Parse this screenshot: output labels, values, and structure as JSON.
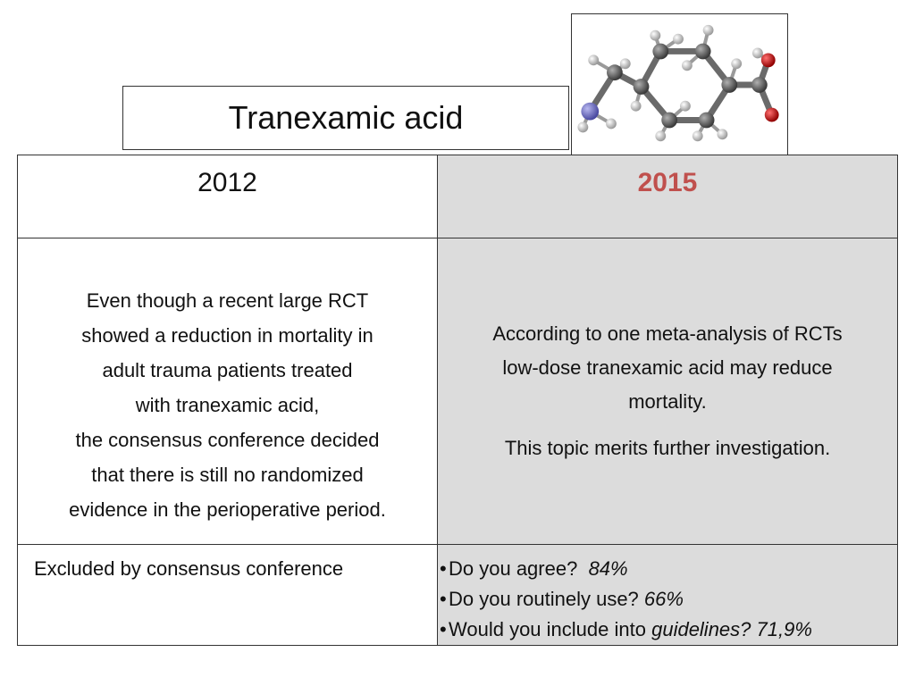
{
  "title": "Tranexamic acid",
  "molecule": {
    "icon": "tranexamic-acid-molecule",
    "colors": {
      "carbon": "#555555",
      "hydrogen": "#e0e0e0",
      "nitrogen": "#7070c8",
      "oxygen": "#cc1111"
    }
  },
  "table": {
    "col_2012": {
      "year": "2012",
      "text_lines": [
        "Even though a recent large RCT",
        "showed a reduction in mortality in",
        "adult trauma patients treated",
        "with tranexamic acid,",
        "the consensus conference decided",
        "that there is still no randomized",
        "evidence in the perioperative period."
      ],
      "status": "Excluded by consensus conference"
    },
    "col_2015": {
      "year": "2015",
      "year_color": "#c0504d",
      "text_lines": [
        "According to one meta-analysis of RCTs",
        "low-dose tranexamic acid may reduce",
        "mortality."
      ],
      "text_second": "This topic merits further investigation.",
      "survey": {
        "bullet": "•",
        "q1": "Do you agree?",
        "q1_value": "84%",
        "q2": "Do you routinely use?",
        "q2_value": "66%",
        "q3_prefix": "Would you include into",
        "q3_italic": "guidelines?",
        "q3_value": "71,9%"
      }
    }
  }
}
